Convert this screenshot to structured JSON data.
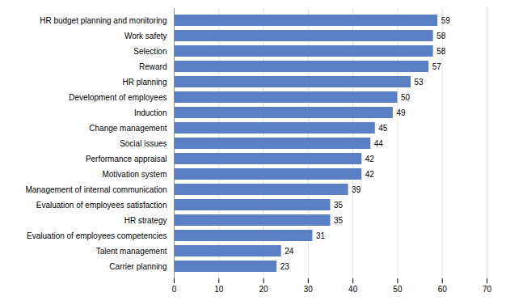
{
  "chart_data": {
    "type": "bar",
    "orientation": "horizontal",
    "categories": [
      "Carrier planning",
      "Talent management",
      "Evaluation of employees competencies",
      "HR strategy",
      "Evaluation of employees satisfaction",
      "Management of internal communication",
      "Motivation system",
      "Performance appraisal",
      "Social issues",
      "Change management",
      "Induction",
      "Development of employees",
      "HR planning",
      "Reward",
      "Selection",
      "Work safety",
      "HR budget planning and monitoring"
    ],
    "values": [
      23,
      24,
      31,
      35,
      35,
      39,
      42,
      42,
      44,
      45,
      49,
      50,
      53,
      57,
      58,
      58,
      59
    ],
    "color": "#5B7FC4",
    "xlim": [
      0,
      70
    ],
    "xticks": [
      0,
      10,
      20,
      30,
      40,
      50,
      60,
      70
    ],
    "grid": true,
    "data_labels": true
  }
}
